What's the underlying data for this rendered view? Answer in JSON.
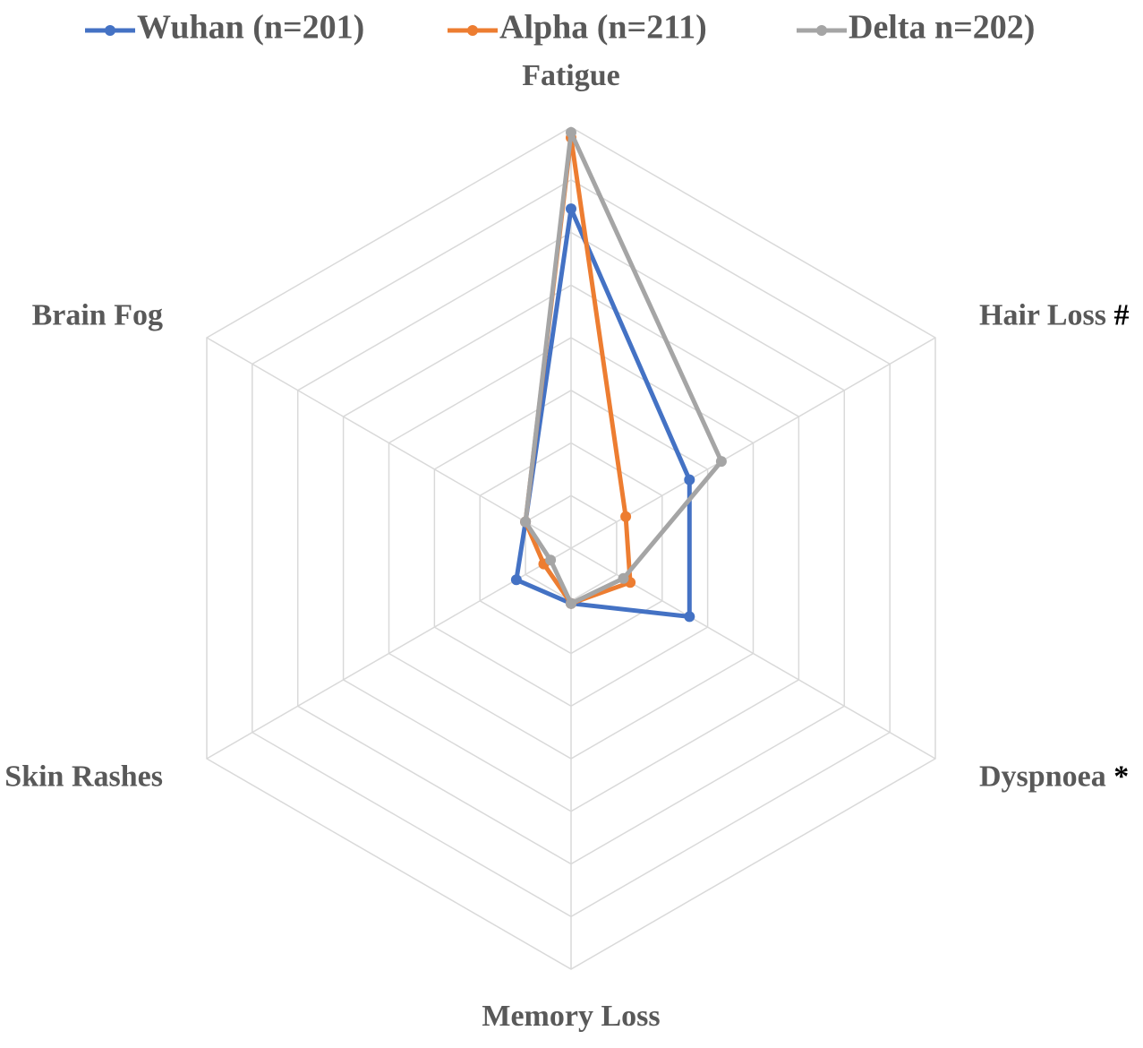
{
  "chart_data": {
    "type": "radar",
    "title": "",
    "axes": [
      {
        "label": "Fatigue",
        "marker": ""
      },
      {
        "label": "Hair Loss",
        "marker": "#"
      },
      {
        "label": "Dyspnoea",
        "marker": "*"
      },
      {
        "label": "Memory Loss",
        "marker": ""
      },
      {
        "label": "Skin Rashes",
        "marker": ""
      },
      {
        "label": "Brain Fog",
        "marker": ""
      }
    ],
    "rmax": 8,
    "rings": 8,
    "grid": true,
    "legend_position": "top",
    "series": [
      {
        "name": "Wuhan (n=201)",
        "color": "#4472C4",
        "values": [
          6.45,
          2.6,
          2.6,
          1.05,
          1.2,
          1.0
        ]
      },
      {
        "name": "Alpha (n=211)",
        "color": "#ED7D31",
        "values": [
          7.8,
          1.2,
          1.3,
          1.05,
          0.6,
          1.0
        ]
      },
      {
        "name": "Delta n=202)",
        "color": "#A5A5A5",
        "values": [
          7.9,
          3.3,
          1.15,
          1.05,
          0.45,
          1.0
        ]
      }
    ]
  }
}
